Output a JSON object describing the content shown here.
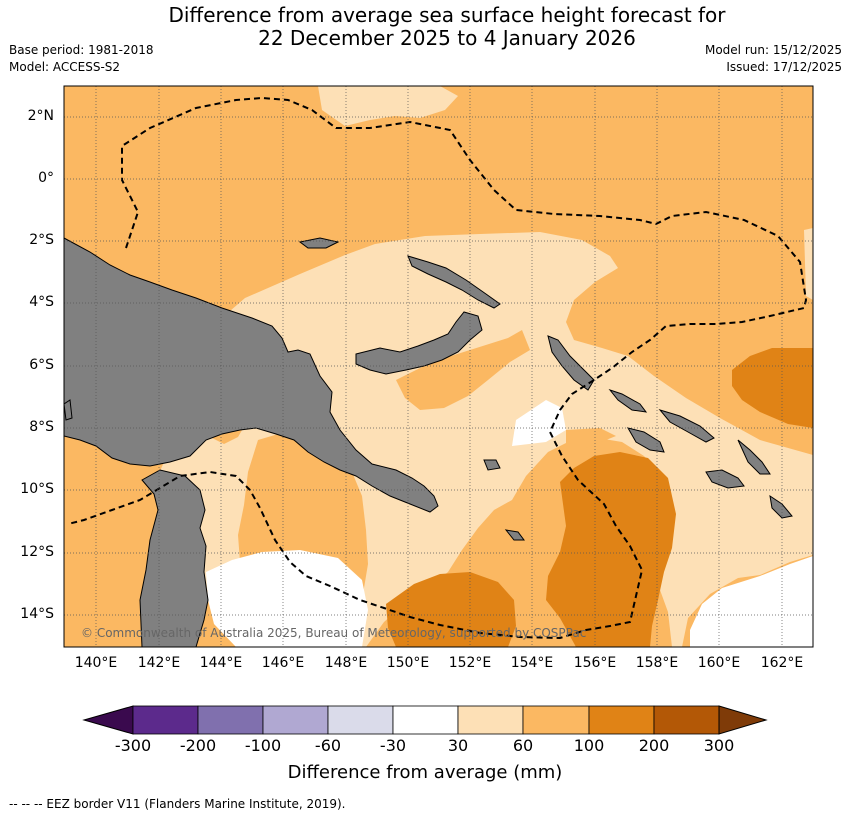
{
  "title": {
    "line1": "Difference from average sea surface height forecast for",
    "line2": "22 December 2025 to 4 January 2026"
  },
  "meta": {
    "base_period": "Base period: 1981-2018",
    "model": "Model: ACCESS-S2",
    "model_run": "Model run: 15/12/2025",
    "issued": "Issued: 17/12/2025"
  },
  "axes": {
    "lat_ticks": [
      "2°N",
      "0°",
      "2°S",
      "4°S",
      "6°S",
      "8°S",
      "10°S",
      "12°S",
      "14°S"
    ],
    "lon_ticks": [
      "140°E",
      "142°E",
      "144°E",
      "146°E",
      "148°E",
      "150°E",
      "152°E",
      "154°E",
      "156°E",
      "158°E",
      "160°E",
      "162°E"
    ]
  },
  "colorbar": {
    "ticks": [
      "-300",
      "-200",
      "-100",
      "-60",
      "-30",
      "30",
      "60",
      "100",
      "200",
      "300"
    ],
    "colors": [
      "#3a0a4e",
      "#5c2a8c",
      "#8070ae",
      "#b0a8d2",
      "#dadbea",
      "#ffffff",
      "#fde0b6",
      "#fbb862",
      "#e08316",
      "#b35806",
      "#7f3b08"
    ],
    "label": "Difference from average (mm)"
  },
  "colors": {
    "land": "#808080",
    "ocean_base": "#fbb862",
    "light": "#fde0b6",
    "dark": "#e08316",
    "neutral": "#ffffff"
  },
  "copyright": "© Commonwealth of Australia 2025, Bureau of Meteorology, supported by COSPPac",
  "footer": "--  --  -- EEZ border V11 (Flanders Marine Institute, 2019)."
}
